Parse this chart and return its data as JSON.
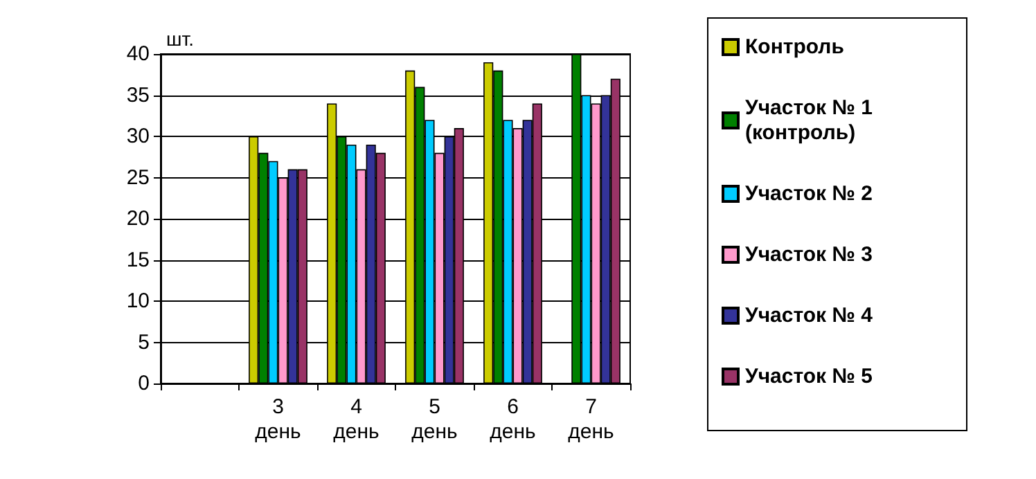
{
  "chart_data": {
    "type": "bar",
    "ylabel": "шт.",
    "categories": [
      null,
      "3 день",
      "4 день",
      "5 день",
      "6 день",
      "7 день"
    ],
    "series": [
      {
        "name": "Контроль",
        "color": "#cccc00",
        "values": [
          null,
          30,
          34,
          38,
          39,
          0
        ]
      },
      {
        "name": "Участок № 1 (контроль)",
        "color": "#008000",
        "values": [
          null,
          28,
          30,
          36,
          38,
          40
        ]
      },
      {
        "name": "Участок № 2",
        "color": "#00ccff",
        "values": [
          null,
          27,
          29,
          32,
          32,
          35
        ]
      },
      {
        "name": "Участок № 3",
        "color": "#ff99cc",
        "values": [
          null,
          25,
          26,
          28,
          31,
          34
        ]
      },
      {
        "name": "Участок № 4",
        "color": "#333399",
        "values": [
          null,
          26,
          29,
          30,
          32,
          35
        ]
      },
      {
        "name": "Участок № 5",
        "color": "#993366",
        "values": [
          null,
          26,
          28,
          31,
          34,
          37
        ]
      }
    ],
    "ylim": [
      0,
      40
    ],
    "yticks": [
      0,
      5,
      10,
      15,
      20,
      25,
      30,
      35,
      40
    ],
    "grid": "y",
    "legend": "right"
  }
}
